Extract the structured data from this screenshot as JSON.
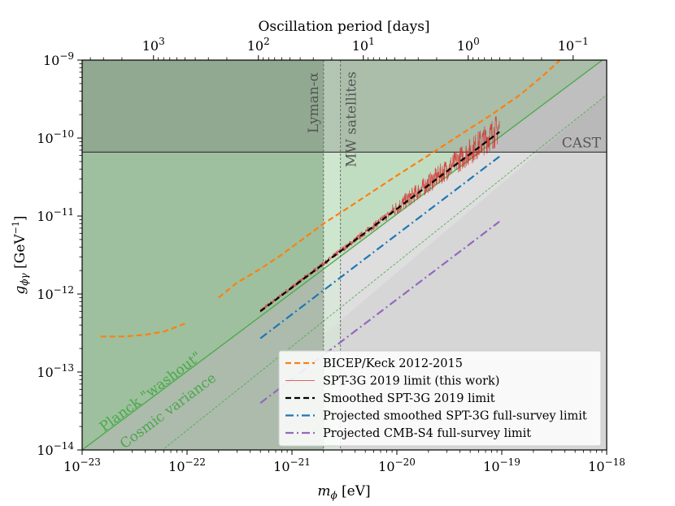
{
  "chart_data": {
    "type": "line",
    "title": "",
    "xlabel": "m_ϕ [eV]",
    "ylabel": "g_ϕγ [GeV⁻¹]",
    "top_axis_label": "Oscillation period [days]",
    "x_scale": "log",
    "y_scale": "log",
    "xlim": [
      1e-23,
      1e-18
    ],
    "ylim": [
      1e-14,
      1e-09
    ],
    "x_ticks": [
      {
        "value": 1e-23,
        "base": "10",
        "exp": "−23"
      },
      {
        "value": 1e-22,
        "base": "10",
        "exp": "−22"
      },
      {
        "value": 1e-21,
        "base": "10",
        "exp": "−21"
      },
      {
        "value": 1e-20,
        "base": "10",
        "exp": "−20"
      },
      {
        "value": 1e-19,
        "base": "10",
        "exp": "−19"
      },
      {
        "value": 1e-18,
        "base": "10",
        "exp": "−18"
      }
    ],
    "y_ticks": [
      {
        "value": 1e-14,
        "base": "10",
        "exp": "−14"
      },
      {
        "value": 1e-13,
        "base": "10",
        "exp": "−13"
      },
      {
        "value": 1e-12,
        "base": "10",
        "exp": "−12"
      },
      {
        "value": 1e-11,
        "base": "10",
        "exp": "−11"
      },
      {
        "value": 1e-10,
        "base": "10",
        "exp": "−10"
      },
      {
        "value": 1e-09,
        "base": "10",
        "exp": "−9"
      }
    ],
    "top_ticks": [
      {
        "days": 1000,
        "base": "10",
        "exp": "3"
      },
      {
        "days": 100,
        "base": "10",
        "exp": "2"
      },
      {
        "days": 10,
        "base": "10",
        "exp": "1"
      },
      {
        "days": 1,
        "base": "10",
        "exp": "0"
      },
      {
        "days": 0.1,
        "base": "10",
        "exp": "−1"
      }
    ],
    "period_conversion_eV_day": 4.79e-20,
    "regions": {
      "planck_washout": {
        "label": "Planck \"washout\"",
        "x": [
          1e-23,
          1e-18
        ],
        "y": [
          1e-14,
          1.1e-09
        ],
        "color": "#4aa84a"
      },
      "cosmic_variance": {
        "label": "Cosmic variance",
        "x": [
          1e-23,
          1e-18
        ],
        "y": [
          1.5e-15,
          3.6e-10
        ],
        "color": "#4aa84a"
      },
      "cast": {
        "label": "CAST",
        "value": 6.6e-11,
        "color": "#555555"
      },
      "lyman_alpha": {
        "label": "Lyman-α",
        "value": 2e-21,
        "color": "#777777"
      },
      "mw_satellites": {
        "label": "MW satellites",
        "value": 2.9e-21,
        "color": "#777777"
      }
    },
    "series": [
      {
        "name": "BICEP/Keck 2012-2015",
        "style": "dashed",
        "color": "#ff7f0e",
        "segments": [
          {
            "x": [
              1.5e-23,
              2.5e-23,
              4e-23,
              6e-23,
              8e-23,
              1e-22
            ],
            "y": [
              2.85e-13,
              2.85e-13,
              3e-13,
              3.3e-13,
              3.8e-13,
              4.3e-13
            ]
          },
          {
            "x": [
              2e-22,
              3e-22,
              5e-22,
              8e-22,
              1.2e-21,
              2e-21,
              3.5e-21,
              6e-21,
              1e-20,
              2e-20,
              4e-20,
              8e-20,
              1.5e-19,
              2.5e-19,
              3.6e-19
            ],
            "y": [
              9e-13,
              1.4e-12,
              2.1e-12,
              3.2e-12,
              4.8e-12,
              8e-12,
              1.3e-11,
              2.1e-11,
              3.3e-11,
              6e-11,
              1.1e-10,
              2e-10,
              3.6e-10,
              6.4e-10,
              1e-09
            ]
          }
        ]
      },
      {
        "name": "SPT-3G 2019 limit (this work)",
        "style": "solid",
        "color": "#d62728",
        "x_range": [
          5e-22,
          9.5e-20
        ],
        "slope": 1,
        "y_at_x_range_start": 6e-13
      },
      {
        "name": "Smoothed SPT-3G 2019 limit",
        "style": "dashed",
        "color": "#000000",
        "x": [
          5e-22,
          9.5e-20
        ],
        "y": [
          6e-13,
          1.2e-10
        ]
      },
      {
        "name": "Projected smoothed SPT-3G full-survey limit",
        "style": "dashdot",
        "color": "#1f77b4",
        "x": [
          5e-22,
          9.5e-20
        ],
        "y": [
          2.7e-13,
          5.8e-11
        ]
      },
      {
        "name": "Projected CMB-S4 full-survey limit",
        "style": "dashdot",
        "color": "#9467bd",
        "x": [
          5e-22,
          9.5e-20
        ],
        "y": [
          4e-14,
          8.5e-12
        ]
      }
    ],
    "legend_position": "lower-right"
  }
}
